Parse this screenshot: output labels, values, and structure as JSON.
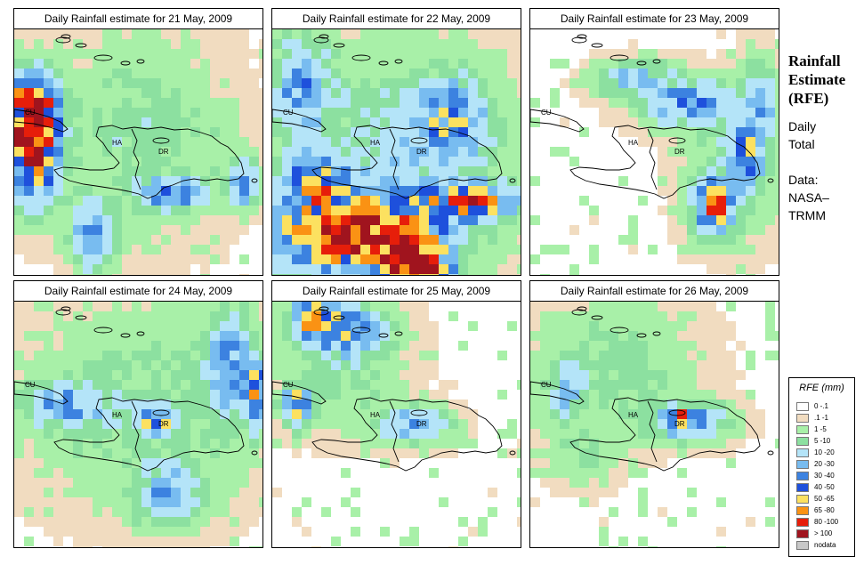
{
  "panels": [
    {
      "title": "Daily Rainfall estimate for  21 May, 2009",
      "seed": 21,
      "blobs": [
        [
          0.06,
          0.45,
          0.09,
          0.18,
          95
        ],
        [
          0.05,
          0.3,
          0.08,
          0.12,
          70
        ],
        [
          0.6,
          0.65,
          0.12,
          0.05,
          45
        ],
        [
          0.9,
          0.6,
          0.05,
          0.08,
          35
        ],
        [
          0.3,
          0.82,
          0.08,
          0.12,
          28
        ],
        [
          0.5,
          0.4,
          0.25,
          0.3,
          8
        ]
      ]
    },
    {
      "title": "Daily Rainfall estimate for  22 May, 2009",
      "seed": 22,
      "blobs": [
        [
          0.3,
          0.8,
          0.28,
          0.14,
          95
        ],
        [
          0.55,
          0.95,
          0.12,
          0.12,
          100
        ],
        [
          0.78,
          0.68,
          0.16,
          0.06,
          75
        ],
        [
          0.15,
          0.6,
          0.1,
          0.1,
          55
        ],
        [
          0.7,
          0.35,
          0.12,
          0.14,
          40
        ],
        [
          0.1,
          0.22,
          0.1,
          0.18,
          30
        ],
        [
          0.5,
          0.5,
          0.35,
          0.35,
          12
        ]
      ]
    },
    {
      "title": "Daily Rainfall estimate for  23 May, 2009",
      "seed": 23,
      "blobs": [
        [
          0.72,
          0.7,
          0.07,
          0.09,
          70
        ],
        [
          0.85,
          0.5,
          0.06,
          0.1,
          45
        ],
        [
          0.62,
          0.28,
          0.15,
          0.08,
          35
        ],
        [
          0.9,
          0.3,
          0.06,
          0.15,
          25
        ],
        [
          0.4,
          0.18,
          0.12,
          0.06,
          22
        ],
        [
          0.8,
          0.55,
          0.15,
          0.22,
          8
        ]
      ]
    },
    {
      "title": "Daily Rainfall estimate for  24 May, 2009",
      "seed": 24,
      "blobs": [
        [
          0.55,
          0.47,
          0.06,
          0.04,
          55
        ],
        [
          0.96,
          0.35,
          0.04,
          0.12,
          55
        ],
        [
          0.85,
          0.25,
          0.08,
          0.18,
          35
        ],
        [
          0.18,
          0.4,
          0.14,
          0.08,
          28
        ],
        [
          0.6,
          0.75,
          0.12,
          0.1,
          25
        ],
        [
          0.5,
          0.4,
          0.35,
          0.3,
          8
        ]
      ]
    },
    {
      "title": "Daily Rainfall estimate for  25 May, 2009",
      "seed": 25,
      "blobs": [
        [
          0.15,
          0.05,
          0.08,
          0.06,
          75
        ],
        [
          0.08,
          0.4,
          0.05,
          0.06,
          55
        ],
        [
          0.3,
          0.1,
          0.12,
          0.08,
          35
        ],
        [
          0.55,
          0.48,
          0.12,
          0.06,
          28
        ],
        [
          0.25,
          0.2,
          0.18,
          0.2,
          10
        ]
      ]
    },
    {
      "title": "Daily Rainfall estimate for  26 May, 2009",
      "seed": 26,
      "blobs": [
        [
          0.6,
          0.45,
          0.05,
          0.03,
          55
        ],
        [
          0.6,
          0.47,
          0.14,
          0.06,
          30
        ],
        [
          0.12,
          0.35,
          0.06,
          0.1,
          20
        ],
        [
          0.3,
          0.25,
          0.25,
          0.2,
          8
        ],
        [
          0.2,
          0.6,
          0.1,
          0.1,
          6
        ]
      ]
    }
  ],
  "map_labels": {
    "cu": "CU",
    "ha": "HA",
    "dr": "DR"
  },
  "side": {
    "title_line1": "Rainfall",
    "title_line2": "Estimate",
    "title_line3": "(RFE)",
    "daily_line1": "Daily",
    "daily_line2": "Total",
    "source_line1": "Data:",
    "source_line2": "NASA–",
    "source_line3": "TRMM"
  },
  "legend": {
    "title": "RFE (mm)",
    "items": [
      {
        "label": "0 -.1",
        "color": "#ffffff"
      },
      {
        "label": ".1 -1",
        "color": "#f1dcc0"
      },
      {
        "label": "1 -5",
        "color": "#a8f0a8"
      },
      {
        "label": "5 -10",
        "color": "#8ce0a0"
      },
      {
        "label": "10 -20",
        "color": "#b4e4f8"
      },
      {
        "label": "20 -30",
        "color": "#78bcf0"
      },
      {
        "label": "30 -40",
        "color": "#3c82e0"
      },
      {
        "label": "40 -50",
        "color": "#1e50dc"
      },
      {
        "label": "50 -65",
        "color": "#fce160"
      },
      {
        "label": "65 -80",
        "color": "#fa9214"
      },
      {
        "label": "80 -100",
        "color": "#e61e0a"
      },
      {
        "label": "> 100",
        "color": "#a0141e"
      },
      {
        "label": "nodata",
        "color": "#c8c8c8"
      }
    ]
  }
}
